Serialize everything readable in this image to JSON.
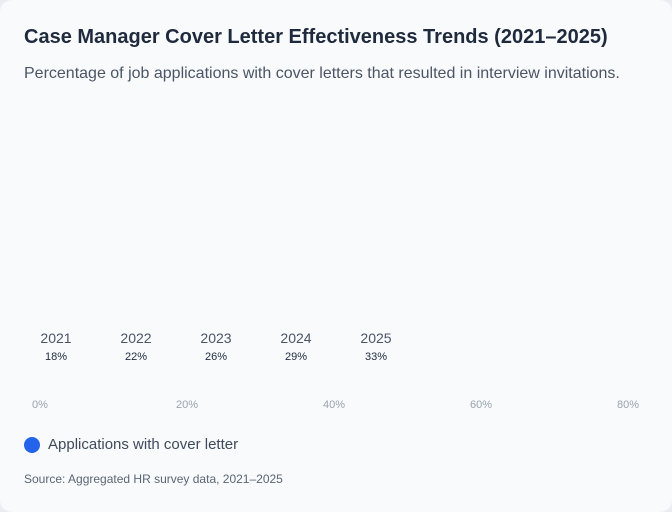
{
  "title": "Case Manager Cover Letter Effectiveness Trends (2021–2025)",
  "subtitle": "Percentage of job applications with cover letters that resulted in interview invitations.",
  "legend": {
    "label": "Applications with cover letter",
    "color": "#2563eb"
  },
  "source": "Source: Aggregated HR survey data, 2021–2025",
  "colors": {
    "category_text": "#4b5565",
    "value_text": "#1f2a3c",
    "tick_text": "#9aa3af"
  },
  "chart_data": {
    "type": "bar",
    "categories": [
      "2021",
      "2022",
      "2023",
      "2024",
      "2025"
    ],
    "value_labels": [
      "18%",
      "22%",
      "26%",
      "29%",
      "33%"
    ],
    "series": [
      {
        "name": "Applications with cover letter",
        "values": [
          18,
          22,
          26,
          29,
          33
        ]
      }
    ],
    "xlim": [
      0,
      80
    ],
    "x_ticks": [
      "0%",
      "20%",
      "40%",
      "60%",
      "80%"
    ],
    "grid": false,
    "legend_position": "bottom-left"
  }
}
